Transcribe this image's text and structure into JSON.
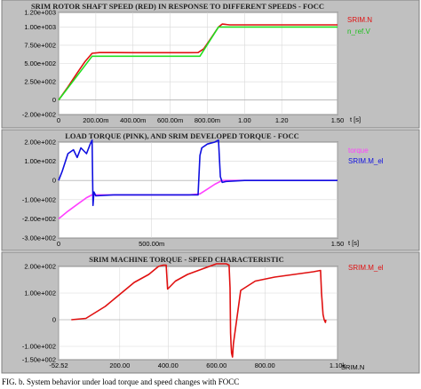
{
  "chart_data": [
    {
      "type": "line",
      "title": "SRIM ROTOR SHAFT SPEED (RED) IN RESPONSE TO DIFFERENT SPEEDS - FOCC",
      "xlabel": "t [s]",
      "ylabel": "",
      "xlim": [
        0,
        1.5
      ],
      "ylim": [
        -200,
        1200
      ],
      "x_ticks": [
        0,
        0.2,
        0.4,
        0.6,
        0.8,
        1.0,
        1.2,
        1.5
      ],
      "x_tick_labels": [
        "0",
        "200.00m",
        "400.00m",
        "600.00m",
        "800.00m",
        "1.00",
        "1.20",
        "1.50"
      ],
      "y_ticks": [
        1200,
        1000,
        750,
        500,
        250,
        0,
        -200
      ],
      "y_tick_labels": [
        "1.20e+003",
        "1.00e+003",
        "7.50e+002",
        "5.00e+002",
        "2.50e+002",
        "0",
        "-2.00e+002"
      ],
      "series": [
        {
          "name": "SRIM.N",
          "color": "#e01010",
          "x": [
            0,
            0.05,
            0.1,
            0.14,
            0.18,
            0.22,
            0.3,
            0.4,
            0.5,
            0.6,
            0.7,
            0.75,
            0.78,
            0.82,
            0.86,
            0.88,
            0.92,
            1.0,
            1.1,
            1.2,
            1.3,
            1.4,
            1.5
          ],
          "y": [
            0,
            180,
            370,
            520,
            640,
            650,
            650,
            648,
            648,
            648,
            648,
            650,
            700,
            850,
            1000,
            1040,
            1030,
            1030,
            1030,
            1030,
            1030,
            1030,
            1030
          ]
        },
        {
          "name": "n_ref.V",
          "color": "#20e020",
          "x": [
            0,
            0.18,
            0.76,
            0.86,
            1.5
          ],
          "y": [
            0,
            600,
            600,
            1000,
            1000
          ]
        }
      ]
    },
    {
      "type": "line",
      "title": "LOAD TORQUE (PINK), AND SRIM DEVELOPED TORQUE - FOCC",
      "xlabel": "t [s]",
      "ylabel": "",
      "xlim": [
        0,
        1.5
      ],
      "ylim": [
        -300,
        200
      ],
      "x_ticks": [
        0,
        0.5,
        1.5
      ],
      "x_tick_labels": [
        "0",
        "500.00m",
        "1.50"
      ],
      "y_ticks": [
        200,
        100,
        0,
        -100,
        -200,
        -300
      ],
      "y_tick_labels": [
        "2.00e+002",
        "1.00e+002",
        "0",
        "-1.00e+002",
        "-2.00e+002",
        "-3.00e+002"
      ],
      "series": [
        {
          "name": "torque",
          "color": "#ff40ff",
          "x": [
            0,
            0.05,
            0.1,
            0.15,
            0.18,
            0.3,
            0.5,
            0.7,
            0.76,
            0.8,
            0.84,
            0.88,
            0.95,
            1.2,
            1.5
          ],
          "y": [
            -200,
            -160,
            -125,
            -90,
            -75,
            -75,
            -75,
            -75,
            -70,
            -45,
            -20,
            0,
            0,
            0,
            0
          ]
        },
        {
          "name": "SRIM.M_el",
          "color": "#1010e0",
          "x": [
            0,
            0.02,
            0.05,
            0.08,
            0.1,
            0.12,
            0.15,
            0.17,
            0.18,
            0.185,
            0.19,
            0.2,
            0.3,
            0.5,
            0.7,
            0.75,
            0.76,
            0.77,
            0.8,
            0.84,
            0.86,
            0.87,
            0.88,
            0.9,
            1.0,
            1.5
          ],
          "y": [
            0,
            50,
            140,
            160,
            120,
            170,
            140,
            190,
            210,
            -130,
            -60,
            -80,
            -75,
            -75,
            -75,
            -75,
            130,
            170,
            190,
            200,
            210,
            20,
            -10,
            -5,
            0,
            0
          ]
        }
      ]
    },
    {
      "type": "line",
      "title": "SRIM MACHINE TORQUE - SPEED CHARACTERISTIC",
      "xlabel": "SRIM.N",
      "ylabel": "",
      "xlim": [
        -52.52,
        1100
      ],
      "ylim": [
        -150,
        200
      ],
      "x_ticks": [
        -52.52,
        200,
        400,
        600,
        800,
        1100
      ],
      "x_tick_labels": [
        "-52.52",
        "200.00",
        "400.00",
        "600.00",
        "800.00",
        "1.10k"
      ],
      "y_ticks": [
        200,
        100,
        0,
        -100,
        -150
      ],
      "y_tick_labels": [
        "2.00e+002",
        "1.00e+002",
        "0",
        "-1.00e+002",
        "-1.50e+002"
      ],
      "series": [
        {
          "name": "SRIM.M_el",
          "color": "#e01010",
          "x": [
            0,
            60,
            140,
            200,
            260,
            320,
            360,
            380,
            392,
            398,
            430,
            480,
            540,
            600,
            640,
            652,
            656,
            658,
            660,
            662,
            666,
            670,
            700,
            760,
            840,
            920,
            1000,
            1030,
            1034,
            1040,
            1045,
            1050,
            1052
          ],
          "y": [
            0,
            5,
            50,
            95,
            140,
            170,
            200,
            205,
            205,
            115,
            145,
            170,
            190,
            210,
            210,
            205,
            120,
            -50,
            -90,
            -125,
            -140,
            -90,
            110,
            145,
            160,
            170,
            180,
            185,
            100,
            20,
            0,
            -10,
            0
          ]
        }
      ]
    }
  ],
  "captions": {
    "line": "FIG. b. System behavior under load torque and speed changes with FOCC"
  }
}
